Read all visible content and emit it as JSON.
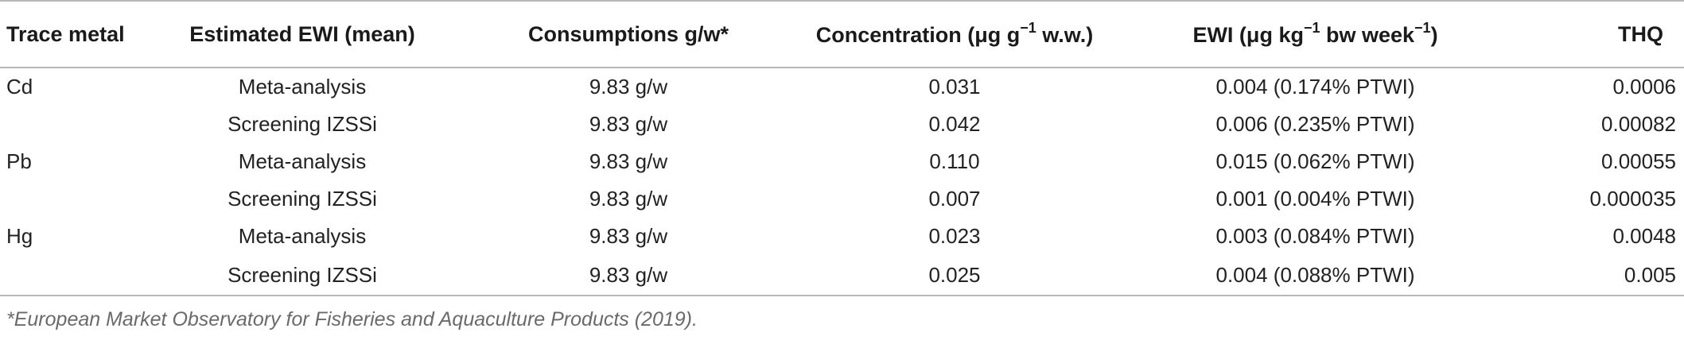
{
  "table": {
    "headers": [
      "Trace metal",
      "Estimated EWI (mean)",
      "Consumptions g/w*",
      "Concentration (μg g−1 w.w.)",
      "EWI (μg kg−1 bw week−1)",
      "THQ"
    ],
    "header_parts": {
      "concentration": {
        "a": "Concentration (μg g",
        "sup": "−1",
        "b": " w.w.)"
      },
      "ewi": {
        "a": "EWI (μg kg",
        "sup1": "−1",
        "b": " bw week",
        "sup2": "−1",
        "c": ")"
      }
    },
    "rows": [
      {
        "metal": "Cd",
        "method": "Meta-analysis",
        "consumption": "9.83 g/w",
        "concentration": "0.031",
        "ewi": "0.004 (0.174% PTWI)",
        "thq": "0.0006"
      },
      {
        "metal": "",
        "method": "Screening IZSSi",
        "consumption": "9.83 g/w",
        "concentration": "0.042",
        "ewi": "0.006 (0.235% PTWI)",
        "thq": "0.00082"
      },
      {
        "metal": "Pb",
        "method": "Meta-analysis",
        "consumption": "9.83 g/w",
        "concentration": "0.110",
        "ewi": "0.015 (0.062% PTWI)",
        "thq": "0.00055"
      },
      {
        "metal": "",
        "method": "Screening IZSSi",
        "consumption": "9.83 g/w",
        "concentration": "0.007",
        "ewi": "0.001 (0.004% PTWI)",
        "thq": "0.000035"
      },
      {
        "metal": "Hg",
        "method": "Meta-analysis",
        "consumption": "9.83 g/w",
        "concentration": "0.023",
        "ewi": "0.003 (0.084% PTWI)",
        "thq": "0.0048"
      },
      {
        "metal": "",
        "method": "Screening IZSSi",
        "consumption": "9.83 g/w",
        "concentration": "0.025",
        "ewi": "0.004 (0.088% PTWI)",
        "thq": "0.005"
      }
    ]
  },
  "footnote": "*European Market Observatory for Fisheries and Aquaculture Products (2019).",
  "colors": {
    "text": "#222222",
    "rule": "#b8b8b8",
    "footnote": "#6a6a6a"
  }
}
